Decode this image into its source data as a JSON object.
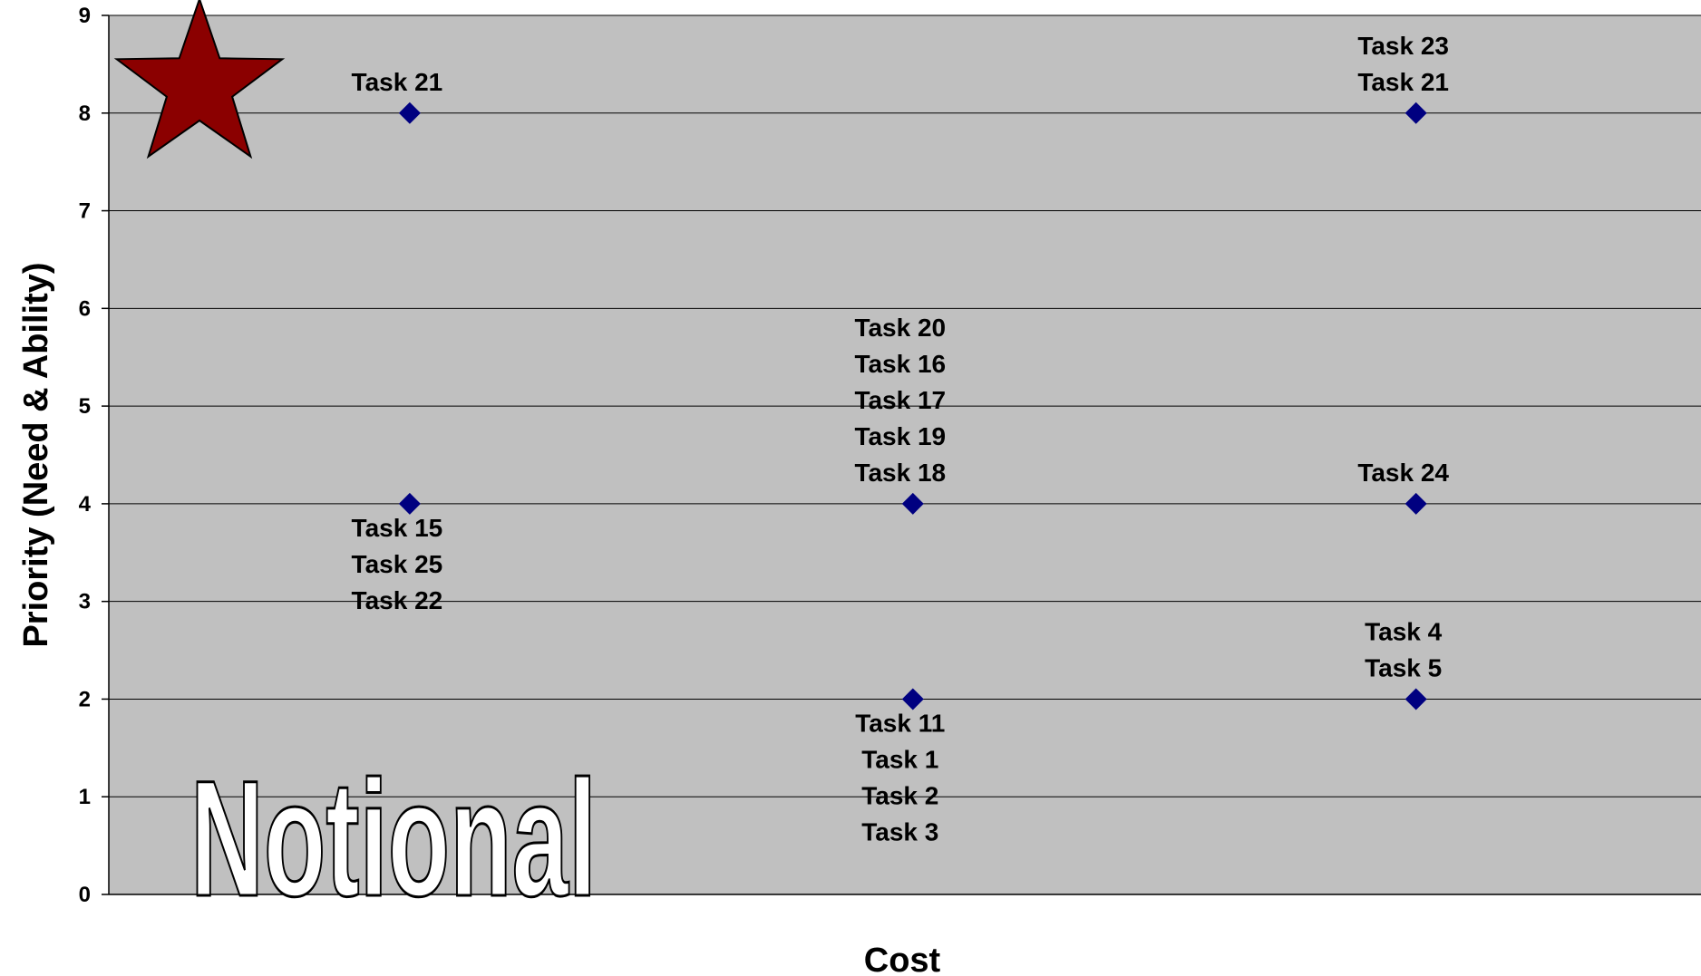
{
  "chart_data": {
    "type": "scatter",
    "title": "",
    "xlabel": "Cost",
    "ylabel": "Priority (Need & Ability)",
    "ylim": [
      0,
      9
    ],
    "yticks": [
      "0",
      "1",
      "2",
      "3",
      "4",
      "5",
      "6",
      "7",
      "8",
      "9"
    ],
    "xlim": [
      0,
      1
    ],
    "grid": true,
    "legend": "none",
    "background_color": "#c0c0c0",
    "marker_color": "#000080",
    "marker_shape": "diamond",
    "points": [
      {
        "x": 0.189,
        "y": 8,
        "labels": [
          "Task 21"
        ],
        "label_pos": "above"
      },
      {
        "x": 0.189,
        "y": 4,
        "labels": [
          "Task 15",
          "Task 25",
          "Task 22"
        ],
        "label_pos": "below"
      },
      {
        "x": 0.505,
        "y": 4,
        "labels": [
          "Task 20",
          "Task 16",
          "Task 17",
          "Task 19",
          "Task 18"
        ],
        "label_pos": "above"
      },
      {
        "x": 0.505,
        "y": 2,
        "labels": [
          "Task 11",
          "Task 1",
          "Task 2",
          "Task 3"
        ],
        "label_pos": "below"
      },
      {
        "x": 0.821,
        "y": 8,
        "labels": [
          "Task 23",
          "Task 21"
        ],
        "label_pos": "above"
      },
      {
        "x": 0.821,
        "y": 4,
        "labels": [
          "Task 24"
        ],
        "label_pos": "above"
      },
      {
        "x": 0.821,
        "y": 2,
        "labels": [
          "Task 4",
          "Task 5"
        ],
        "label_pos": "above"
      }
    ],
    "annotations": {
      "watermark_text": "Notional",
      "star_icon": "star-icon",
      "star_color": "#8b0000"
    }
  }
}
